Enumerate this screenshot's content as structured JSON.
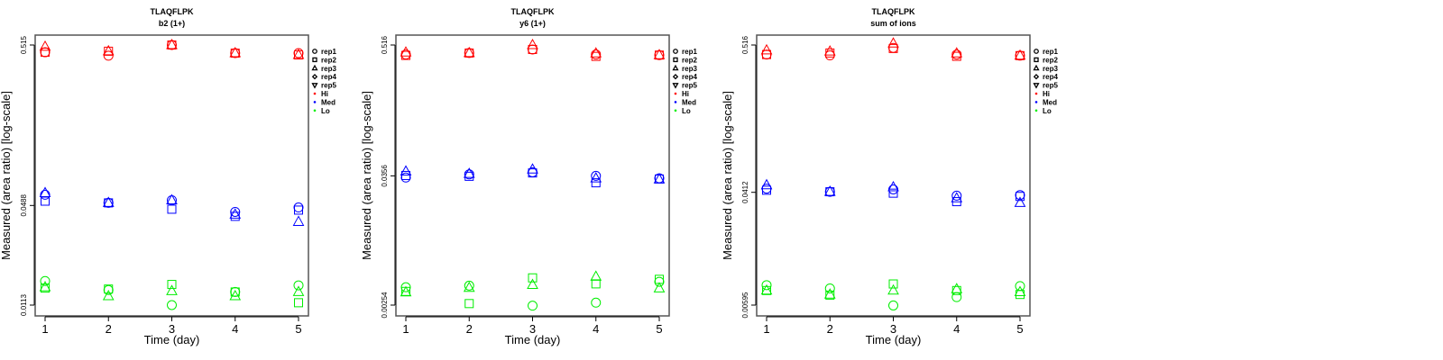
{
  "chart_data": [
    {
      "type": "scatter",
      "title": "TLAQFLPK",
      "subtitle": "b2 (1+)",
      "xlabel": "Time (day)",
      "ylabel": "Measured (area ratio) [log-scale]",
      "yscale": "log",
      "x": [
        1,
        2,
        3,
        4,
        5
      ],
      "yticks": [
        0.0113,
        0.0488,
        0.515
      ],
      "ytick_labels": [
        "0.0113",
        "0.0488",
        "0.515"
      ],
      "legend_position": "right",
      "series": [
        {
          "name": "Hi rep1",
          "group": "Hi",
          "rep": "rep1",
          "values": [
            0.463,
            0.44,
            0.515,
            0.457,
            0.457
          ]
        },
        {
          "name": "Hi rep2",
          "group": "Hi",
          "rep": "rep2",
          "values": [
            0.463,
            0.47,
            0.515,
            0.457,
            0.445
          ]
        },
        {
          "name": "Hi rep3",
          "group": "Hi",
          "rep": "rep3",
          "values": [
            0.502,
            0.47,
            0.515,
            0.457,
            0.445
          ]
        },
        {
          "name": "Med rep1",
          "group": "Med",
          "rep": "rep1",
          "values": [
            0.0571,
            0.0507,
            0.0527,
            0.0444,
            0.0474
          ]
        },
        {
          "name": "Med rep2",
          "group": "Med",
          "rep": "rep2",
          "values": [
            0.052,
            0.0507,
            0.0462,
            0.0416,
            0.0456
          ]
        },
        {
          "name": "Med rep3",
          "group": "Med",
          "rep": "rep3",
          "values": [
            0.0586,
            0.0507,
            0.0527,
            0.0427,
            0.0384
          ]
        },
        {
          "name": "Lo rep1",
          "group": "Lo",
          "rep": "rep1",
          "values": [
            0.0161,
            0.0141,
            0.0113,
            0.0137,
            0.0151
          ]
        },
        {
          "name": "Lo rep2",
          "group": "Lo",
          "rep": "rep2",
          "values": [
            0.0145,
            0.0143,
            0.0153,
            0.0137,
            0.0117
          ]
        },
        {
          "name": "Lo rep3",
          "group": "Lo",
          "rep": "rep3",
          "values": [
            0.0147,
            0.0129,
            0.0139,
            0.0129,
            0.0137
          ]
        }
      ]
    },
    {
      "type": "scatter",
      "title": "TLAQFLPK",
      "subtitle": "y6 (1+)",
      "xlabel": "Time (day)",
      "ylabel": "Measured (area ratio) [log-scale]",
      "yscale": "log",
      "x": [
        1,
        2,
        3,
        4,
        5
      ],
      "yticks": [
        0.00254,
        0.0356,
        0.516
      ],
      "ytick_labels": [
        "0.00254",
        "0.0356",
        "0.516"
      ],
      "legend_position": "right",
      "series": [
        {
          "name": "Hi rep1",
          "group": "Hi",
          "rep": "rep1",
          "values": [
            0.425,
            0.438,
            0.471,
            0.425,
            0.42
          ]
        },
        {
          "name": "Hi rep2",
          "group": "Hi",
          "rep": "rep2",
          "values": [
            0.417,
            0.438,
            0.471,
            0.409,
            0.42
          ]
        },
        {
          "name": "Hi rep3",
          "group": "Hi",
          "rep": "rep3",
          "values": [
            0.443,
            0.438,
            0.516,
            0.435,
            0.42
          ]
        },
        {
          "name": "Med rep1",
          "group": "Med",
          "rep": "rep1",
          "values": [
            0.0344,
            0.0367,
            0.0383,
            0.0356,
            0.0339
          ]
        },
        {
          "name": "Med rep2",
          "group": "Med",
          "rep": "rep2",
          "values": [
            0.0359,
            0.0353,
            0.0378,
            0.0309,
            0.0334
          ]
        },
        {
          "name": "Med rep3",
          "group": "Med",
          "rep": "rep3",
          "values": [
            0.039,
            0.0371,
            0.0406,
            0.0339,
            0.0332
          ]
        },
        {
          "name": "Lo rep1",
          "group": "Lo",
          "rep": "rep1",
          "values": [
            0.00366,
            0.00378,
            0.00251,
            0.00267,
            0.00409
          ]
        },
        {
          "name": "Lo rep2",
          "group": "Lo",
          "rep": "rep2",
          "values": [
            0.00336,
            0.00262,
            0.00443,
            0.00392,
            0.0043
          ]
        },
        {
          "name": "Lo rep3",
          "group": "Lo",
          "rep": "rep3",
          "values": [
            0.0033,
            0.00362,
            0.00384,
            0.00454,
            0.00358
          ]
        }
      ]
    },
    {
      "type": "scatter",
      "title": "TLAQFLPK",
      "subtitle": "sum of ions",
      "xlabel": "Time (day)",
      "ylabel": "Measured (area ratio) [log-scale]",
      "yscale": "log",
      "x": [
        1,
        2,
        3,
        4,
        5
      ],
      "yticks": [
        0.00595,
        0.0412,
        0.516
      ],
      "ytick_labels": [
        "0.00595",
        "0.0412",
        "0.516"
      ],
      "legend_position": "right",
      "series": [
        {
          "name": "Hi rep1",
          "group": "Hi",
          "rep": "rep1",
          "values": [
            0.438,
            0.432,
            0.491,
            0.438,
            0.43
          ]
        },
        {
          "name": "Hi rep2",
          "group": "Hi",
          "rep": "rep2",
          "values": [
            0.438,
            0.45,
            0.486,
            0.425,
            0.43
          ]
        },
        {
          "name": "Hi rep3",
          "group": "Hi",
          "rep": "rep3",
          "values": [
            0.471,
            0.462,
            0.53,
            0.447,
            0.43
          ]
        },
        {
          "name": "Med rep1",
          "group": "Med",
          "rep": "rep1",
          "values": [
            0.0439,
            0.0416,
            0.0433,
            0.0389,
            0.0393
          ]
        },
        {
          "name": "Med rep2",
          "group": "Med",
          "rep": "rep2",
          "values": [
            0.0427,
            0.0416,
            0.0406,
            0.0351,
            0.0384
          ]
        },
        {
          "name": "Med rep3",
          "group": "Med",
          "rep": "rep3",
          "values": [
            0.0466,
            0.0416,
            0.045,
            0.0372,
            0.0344
          ]
        },
        {
          "name": "Lo rep1",
          "group": "Lo",
          "rep": "rep1",
          "values": [
            0.00838,
            0.00792,
            0.00591,
            0.00682,
            0.00825
          ]
        },
        {
          "name": "Lo rep2",
          "group": "Lo",
          "rep": "rep2",
          "values": [
            0.00764,
            0.00706,
            0.00855,
            0.00764,
            0.00714
          ]
        },
        {
          "name": "Lo rep3",
          "group": "Lo",
          "rep": "rep3",
          "values": [
            0.00764,
            0.00714,
            0.00764,
            0.00783,
            0.00744
          ]
        }
      ]
    }
  ],
  "legend": {
    "shapes": [
      {
        "label": "rep1",
        "shape": "circle"
      },
      {
        "label": "rep2",
        "shape": "square"
      },
      {
        "label": "rep3",
        "shape": "triangle-up"
      },
      {
        "label": "rep4",
        "shape": "diamond"
      },
      {
        "label": "rep5",
        "shape": "triangle-down"
      }
    ],
    "groups": [
      {
        "label": "Hi",
        "color": "#ff0000"
      },
      {
        "label": "Med",
        "color": "#0000ff"
      },
      {
        "label": "Lo",
        "color": "#00ee00"
      }
    ]
  }
}
